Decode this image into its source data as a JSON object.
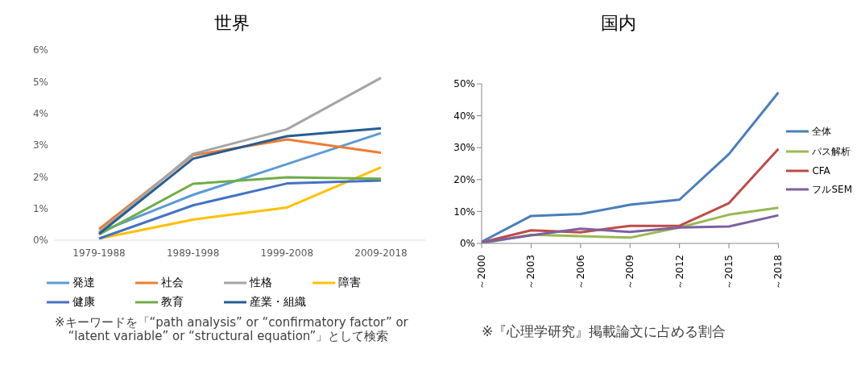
{
  "chart_data": [
    {
      "type": "line",
      "title": "世界",
      "categories": [
        "1979-1988",
        "1989-1998",
        "1999-2008",
        "2009-2018"
      ],
      "series": [
        {
          "name": "発達",
          "color": "#5b9bd5",
          "values": [
            0.25,
            1.43,
            2.4,
            3.38
          ]
        },
        {
          "name": "社会",
          "color": "#ed7d31",
          "values": [
            0.35,
            2.68,
            3.18,
            2.76
          ]
        },
        {
          "name": "性格",
          "color": "#a5a5a5",
          "values": [
            0.25,
            2.72,
            3.5,
            5.12
          ]
        },
        {
          "name": "障害",
          "color": "#ffc000",
          "values": [
            0.05,
            0.65,
            1.03,
            2.3
          ]
        },
        {
          "name": "健康",
          "color": "#4472c4",
          "values": [
            0.05,
            1.1,
            1.79,
            1.88
          ]
        },
        {
          "name": "教育",
          "color": "#70ad47",
          "values": [
            0.18,
            1.78,
            1.98,
            1.94
          ]
        },
        {
          "name": "産業・組織",
          "color": "#255e91",
          "values": [
            0.2,
            2.57,
            3.28,
            3.53
          ]
        }
      ],
      "ylim": [
        0,
        6
      ],
      "yticks": [
        {
          "value": 0,
          "label": "0%"
        },
        {
          "value": 1,
          "label": "1%"
        },
        {
          "value": 2,
          "label": "2%"
        },
        {
          "value": 3,
          "label": "3%"
        },
        {
          "value": 4,
          "label": "4%"
        },
        {
          "value": 5,
          "label": "5%"
        },
        {
          "value": 6,
          "label": "6%"
        }
      ],
      "grid": false,
      "legend": "bottom",
      "marker": "none",
      "line_style": "solid",
      "annotations": [
        "※キーワードを「“path analysis” or “confirmatory factor” or “latent variable” or “structural equation”」として検索"
      ]
    },
    {
      "type": "line",
      "title": "国内",
      "categories": [
        "～2000",
        "～2003",
        "～2006",
        "～2009",
        "～2012",
        "～2015",
        "～2018"
      ],
      "series": [
        {
          "name": "全体",
          "color": "#4a7ebb",
          "values": [
            0.5,
            8.6,
            9.2,
            12.1,
            13.7,
            28,
            47.3
          ]
        },
        {
          "name": "パス解析",
          "color": "#98b954",
          "values": [
            0,
            2.7,
            2.3,
            1.8,
            5,
            9,
            11.2
          ]
        },
        {
          "name": "CFA",
          "color": "#be4b48",
          "values": [
            0.3,
            4.1,
            3.5,
            5.5,
            5.5,
            12.6,
            29.6
          ]
        },
        {
          "name": "フルSEM",
          "color": "#7d60a0",
          "values": [
            0.3,
            2.5,
            4.6,
            3.6,
            5,
            5.3,
            8.8
          ]
        }
      ],
      "ylim": [
        0,
        50
      ],
      "yticks": [
        {
          "value": 0,
          "label": "0%"
        },
        {
          "value": 10,
          "label": "10%"
        },
        {
          "value": 20,
          "label": "20%"
        },
        {
          "value": 30,
          "label": "30%"
        },
        {
          "value": 40,
          "label": "40%"
        },
        {
          "value": 50,
          "label": "50%"
        }
      ],
      "grid": false,
      "legend": "right",
      "marker": "none",
      "line_style": "solid",
      "annotations": [
        "※『心理学研究』掲載論文に占める割合"
      ]
    }
  ]
}
